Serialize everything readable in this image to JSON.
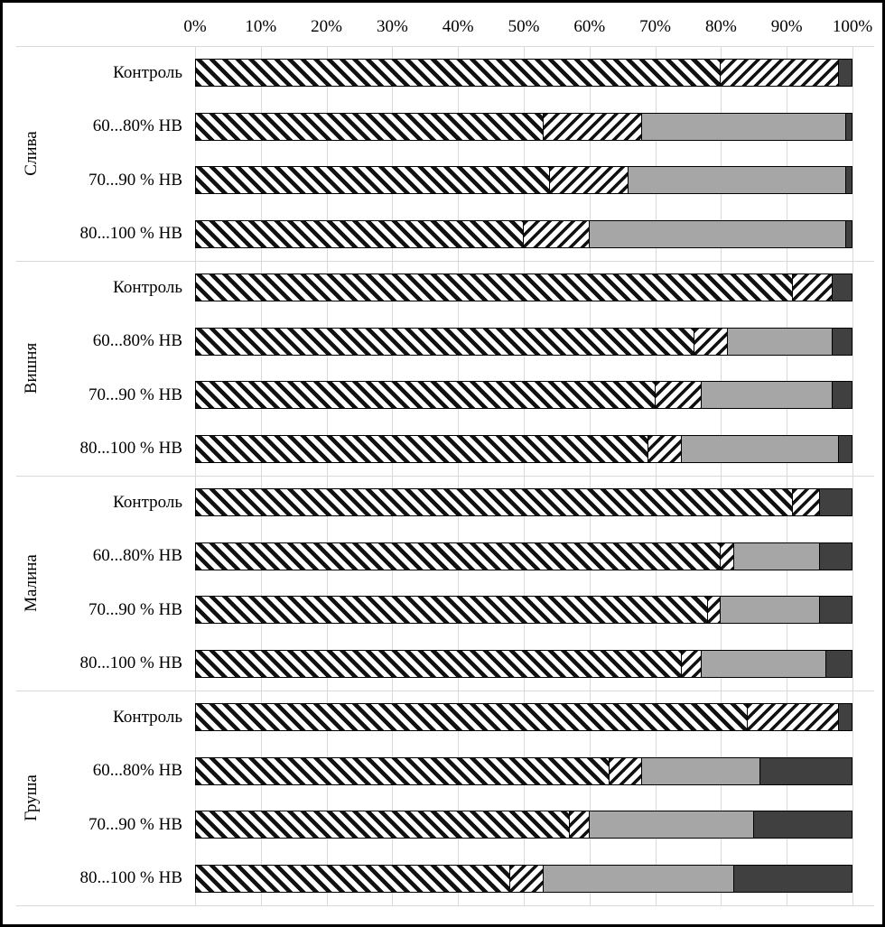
{
  "colors": {
    "grid": "#d9d9d9",
    "frame": "#000000",
    "hatch_ink": "#111111",
    "segment_light_gray": "#a6a6a6",
    "segment_dark_gray": "#404040"
  },
  "chart_data": {
    "type": "bar",
    "orientation": "horizontal",
    "stacked": true,
    "legend": "none",
    "x_axis": {
      "min": 0,
      "max": 100,
      "unit": "%",
      "position": "top",
      "grid": true,
      "ticks": [
        "0%",
        "10%",
        "20%",
        "30%",
        "40%",
        "50%",
        "60%",
        "70%",
        "80%",
        "90%",
        "100%"
      ]
    },
    "series": [
      {
        "id": "hatch-backslash",
        "style": "diagonal-hatch-backslash",
        "color": "#111111"
      },
      {
        "id": "hatch-forwardslash",
        "style": "diagonal-hatch-forwardslash",
        "color": "#111111"
      },
      {
        "id": "solid-light-gray",
        "style": "solid",
        "color": "#a6a6a6"
      },
      {
        "id": "solid-dark-gray",
        "style": "solid",
        "color": "#404040"
      }
    ],
    "groups": [
      {
        "label": "Слива",
        "rows": [
          {
            "label": "Контроль",
            "values": [
              80,
              18,
              0,
              2
            ]
          },
          {
            "label": "60...80% НВ",
            "values": [
              53,
              15,
              31,
              1
            ]
          },
          {
            "label": "70...90 % НВ",
            "values": [
              54,
              12,
              33,
              1
            ]
          },
          {
            "label": "80...100 % НВ",
            "values": [
              50,
              10,
              39,
              1
            ]
          }
        ]
      },
      {
        "label": "Вишня",
        "rows": [
          {
            "label": "Контроль",
            "values": [
              91,
              6,
              0,
              3
            ]
          },
          {
            "label": "60...80% НВ",
            "values": [
              76,
              5,
              16,
              3
            ]
          },
          {
            "label": "70...90 % НВ",
            "values": [
              70,
              7,
              20,
              3
            ]
          },
          {
            "label": "80...100 % НВ",
            "values": [
              69,
              5,
              24,
              2
            ]
          }
        ]
      },
      {
        "label": "Малина",
        "rows": [
          {
            "label": "Контроль",
            "values": [
              91,
              4,
              0,
              5
            ]
          },
          {
            "label": "60...80% НВ",
            "values": [
              80,
              2,
              13,
              5
            ]
          },
          {
            "label": "70...90 % НВ",
            "values": [
              78,
              2,
              15,
              5
            ]
          },
          {
            "label": "80...100 % НВ",
            "values": [
              74,
              3,
              19,
              4
            ]
          }
        ]
      },
      {
        "label": "Груша",
        "rows": [
          {
            "label": "Контроль",
            "values": [
              84,
              14,
              0,
              2
            ]
          },
          {
            "label": "60...80% НВ",
            "values": [
              63,
              5,
              18,
              14
            ]
          },
          {
            "label": "70...90 % НВ",
            "values": [
              57,
              3,
              25,
              15
            ]
          },
          {
            "label": "80...100 % НВ",
            "values": [
              48,
              5,
              29,
              18
            ]
          }
        ]
      }
    ]
  }
}
